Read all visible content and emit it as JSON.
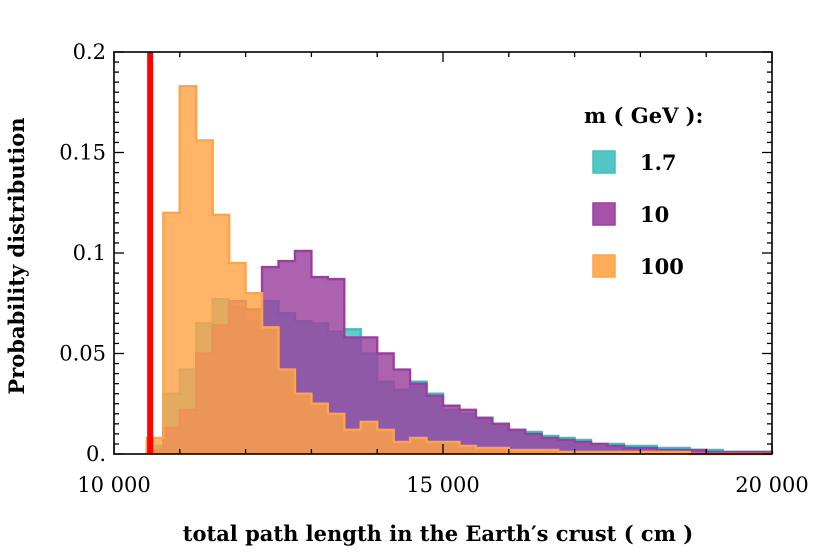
{
  "chart_data": {
    "type": "histogram",
    "xlabel": "total path length in the Earth′s crust ( cm )",
    "ylabel": "Probability distribution",
    "xlim": [
      10000,
      20000
    ],
    "ylim": [
      0,
      0.2
    ],
    "x_ticks": [
      {
        "value": 10000,
        "label": "10 000"
      },
      {
        "value": 15000,
        "label": "15 000"
      },
      {
        "value": 20000,
        "label": "20 000"
      }
    ],
    "y_ticks": [
      {
        "value": 0,
        "label": "0."
      },
      {
        "value": 0.05,
        "label": "0.05"
      },
      {
        "value": 0.1,
        "label": "0.1"
      },
      {
        "value": 0.15,
        "label": "0.15"
      },
      {
        "value": 0.2,
        "label": "0.2"
      }
    ],
    "legend_title": "m ( GeV ):",
    "legend_position": "top-right",
    "bin_width": 250,
    "bin_starts": [
      10500,
      10750,
      11000,
      11250,
      11500,
      11750,
      12000,
      12250,
      12500,
      12750,
      13000,
      13250,
      13500,
      13750,
      14000,
      14250,
      14500,
      14750,
      15000,
      15250,
      15500,
      15750,
      16000,
      16250,
      16500,
      16750,
      17000,
      17250,
      17500,
      17750,
      18000,
      18250,
      18500,
      18750,
      19000,
      19250,
      19500,
      19750
    ],
    "series": [
      {
        "name": "1.7",
        "color": "#3fbfbf",
        "values": [
          0.004,
          0.03,
          0.042,
          0.065,
          0.077,
          0.073,
          0.066,
          0.076,
          0.07,
          0.066,
          0.065,
          0.061,
          0.062,
          0.05,
          0.036,
          0.032,
          0.036,
          0.03,
          0.022,
          0.02,
          0.018,
          0.015,
          0.012,
          0.011,
          0.009,
          0.008,
          0.007,
          0.005,
          0.005,
          0.004,
          0.004,
          0.003,
          0.003,
          0.002,
          0.002,
          0.001,
          0.001,
          0.001
        ]
      },
      {
        "name": "10",
        "color": "#9b3f9f",
        "values": [
          0.002,
          0.013,
          0.022,
          0.05,
          0.064,
          0.076,
          0.072,
          0.093,
          0.096,
          0.101,
          0.088,
          0.087,
          0.058,
          0.058,
          0.05,
          0.042,
          0.035,
          0.029,
          0.024,
          0.022,
          0.018,
          0.015,
          0.012,
          0.01,
          0.008,
          0.007,
          0.006,
          0.005,
          0.004,
          0.003,
          0.003,
          0.002,
          0.002,
          0.002,
          0.001,
          0.001,
          0.001,
          0.001
        ]
      },
      {
        "name": "100",
        "color": "#ffa347",
        "values": [
          0.008,
          0.12,
          0.183,
          0.156,
          0.119,
          0.095,
          0.08,
          0.063,
          0.042,
          0.03,
          0.025,
          0.02,
          0.012,
          0.016,
          0.012,
          0.006,
          0.008,
          0.006,
          0.006,
          0.004,
          0.003,
          0.003,
          0.002,
          0.002,
          0.002,
          0.001,
          0.001,
          0.001,
          0.001,
          0.001,
          0.001,
          0.001,
          0.001,
          0.0,
          0.0,
          0.0,
          0.0,
          0.0
        ]
      }
    ],
    "vertical_line": {
      "x": 10550,
      "color": "#ff0000"
    }
  }
}
